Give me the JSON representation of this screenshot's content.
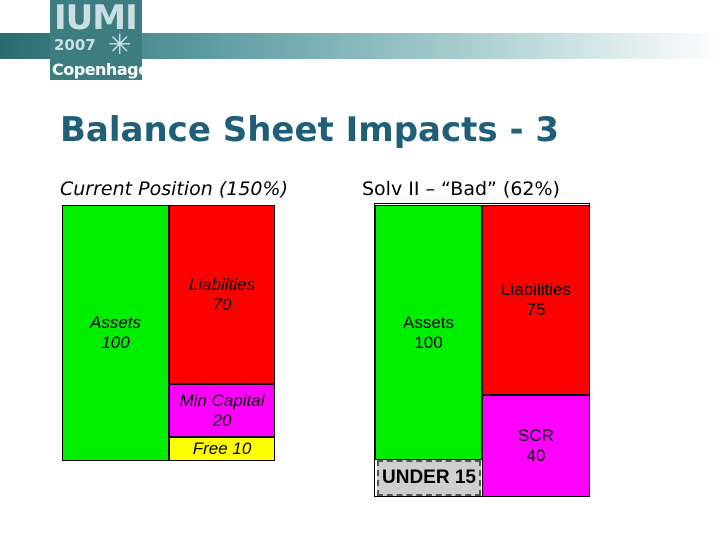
{
  "logo": {
    "main": "IUMI",
    "year": "2007",
    "city": "Copenhagen"
  },
  "slide": {
    "title": "Balance Sheet Impacts - 3"
  },
  "left": {
    "heading": "Current Position (150%)",
    "assets": "Assets\n100",
    "liabilities": "Liabilties\n70",
    "min_capital": "Min Capital\n20",
    "free": "Free 10"
  },
  "right": {
    "heading": "Solv II – “Bad” (62%)",
    "assets": "Assets\n100",
    "under": "UNDER 15",
    "liabilities": "Liabilities\n75",
    "scr": "SCR\n40"
  },
  "colors": {
    "assets": "#00ee00",
    "liabilities": "#ff0000",
    "capital": "#ff00ff",
    "free": "#ffff00",
    "title": "#1f5f77"
  }
}
